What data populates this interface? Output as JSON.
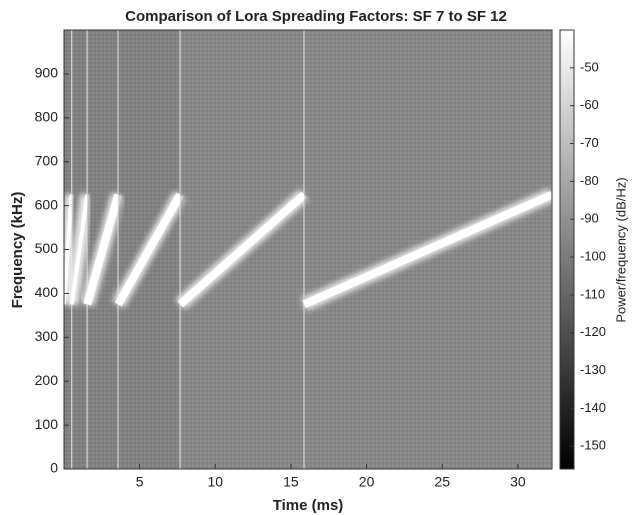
{
  "chart_data": {
    "type": "spectrogram",
    "title": "Comparison of Lora Spreading Factors: SF 7 to SF 12",
    "x_label": "Time (ms)",
    "y_label": "Frequency (kHz)",
    "colorbar_label": "Power/frequency (dB/Hz)",
    "xlim": [
      0,
      32.256
    ],
    "xticks": [
      5,
      10,
      15,
      20,
      25,
      30
    ],
    "ylim": [
      0,
      1000
    ],
    "yticks": [
      0,
      100,
      200,
      300,
      400,
      500,
      600,
      700,
      800,
      900
    ],
    "clim": [
      -156,
      -40
    ],
    "cticks": [
      -50,
      -60,
      -70,
      -80,
      -90,
      -100,
      -110,
      -120,
      -130,
      -140,
      -150
    ],
    "chirps": [
      {
        "x": [
          0,
          0.512
        ],
        "y": [
          375,
          625
        ]
      },
      {
        "x": [
          0.512,
          1.536
        ],
        "y": [
          375,
          625
        ]
      },
      {
        "x": [
          1.536,
          3.584
        ],
        "y": [
          375,
          625
        ]
      },
      {
        "x": [
          3.584,
          7.68
        ],
        "y": [
          375,
          625
        ]
      },
      {
        "x": [
          7.68,
          15.872
        ],
        "y": [
          375,
          625
        ]
      },
      {
        "x": [
          15.872,
          32.256
        ],
        "y": [
          375,
          625
        ]
      }
    ]
  }
}
